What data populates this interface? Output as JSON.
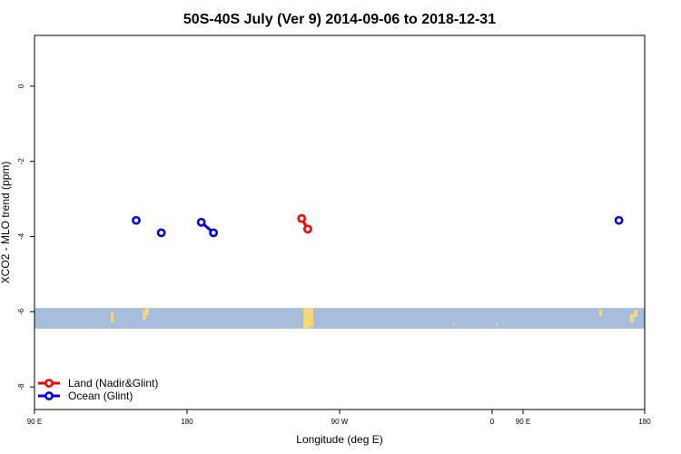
{
  "chart_data": {
    "type": "scatter",
    "title": "50S-40S July (Ver 9)   2014-09-06 to 2018-12-31",
    "xlabel": "Longitude (deg E)",
    "ylabel": "XCO2 - MLO trend (ppm)",
    "xlim": [
      90,
      450
    ],
    "ylim": [
      -8.6,
      1.35
    ],
    "x_ticks": [
      {
        "value": 90,
        "label": "90 E"
      },
      {
        "value": 180,
        "label": "180"
      },
      {
        "value": 270,
        "label": "90 W"
      },
      {
        "value": 360,
        "label": "0"
      },
      {
        "value": 450,
        "label": "90 E"
      },
      {
        "value": 540,
        "label": "180"
      }
    ],
    "y_ticks": [
      {
        "value": 0,
        "label": "0"
      },
      {
        "value": -2,
        "label": "-2"
      },
      {
        "value": -4,
        "label": "-4"
      },
      {
        "value": -6,
        "label": "-6"
      },
      {
        "value": -8,
        "label": "-8"
      }
    ],
    "x_range_full": [
      90,
      540
    ],
    "latitude_band": {
      "y_from": -5.9,
      "y_to": -6.45,
      "color": "#a6bddb"
    },
    "land_color": "#f5d77a",
    "series": [
      {
        "name": "Land (Nadir&Glint)",
        "color": "#ff0000",
        "segments": [
          [
            {
              "x": 287,
              "y": -3.52
            },
            {
              "x": 291.5,
              "y": -3.8
            }
          ]
        ]
      },
      {
        "name": "Ocean (Glint)",
        "color": "#0000ee",
        "segments": [
          [
            {
              "x": 165,
              "y": -3.57
            }
          ],
          [
            {
              "x": 183.5,
              "y": -3.9
            }
          ],
          [
            {
              "x": 213,
              "y": -3.62
            },
            {
              "x": 222,
              "y": -3.9
            }
          ],
          [
            {
              "x": 521,
              "y": -3.57
            }
          ]
        ]
      }
    ],
    "legend_position": "bottom-left"
  }
}
